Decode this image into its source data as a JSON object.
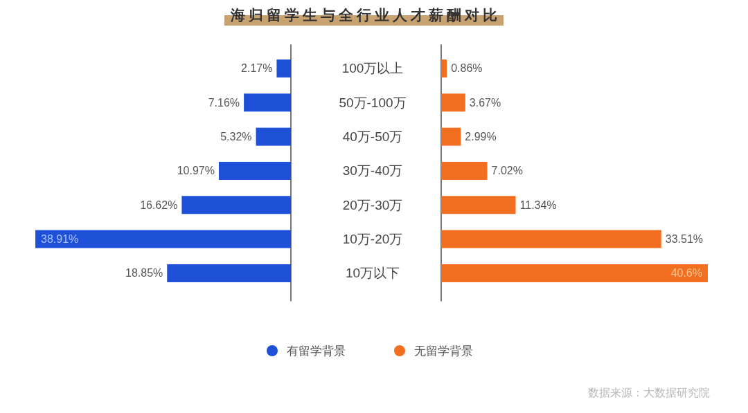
{
  "chart_data": [
    {
      "type": "bar",
      "orientation": "horizontal",
      "title": "海归留学生与全行业人才薪酬对比",
      "categories": [
        "100万以上",
        "50万-100万",
        "40万-50万",
        "30万-40万",
        "20万-30万",
        "10万-20万",
        "10万以下"
      ],
      "tick_labels": false,
      "legend": "bottom",
      "series": [
        {
          "name": "有留学背景",
          "color": "#1f50d8",
          "values": [
            2.17,
            7.16,
            5.32,
            10.97,
            16.62,
            38.91,
            18.85
          ],
          "value_labels": [
            "2.17%",
            "7.16%",
            "5.32%",
            "10.97%",
            "16.62%",
            "38.91%",
            "18.85%"
          ]
        }
      ]
    },
    {
      "type": "bar",
      "orientation": "horizontal",
      "categories": [
        "100万以上",
        "50万-100万",
        "40万-50万",
        "30万-40万",
        "20万-30万",
        "10万-20万",
        "10万以下"
      ],
      "legend": "bottom",
      "series": [
        {
          "name": "无留学背景",
          "color": "#f26f22",
          "values": [
            0.86,
            3.67,
            2.99,
            7.02,
            11.34,
            33.51,
            40.6
          ],
          "value_labels": [
            "0.86%",
            "3.67%",
            "2.99%",
            "7.02%",
            "11.34%",
            "33.51%",
            "40.6%"
          ]
        }
      ],
      "annotations": [
        "数据来源：大数据研究院"
      ]
    }
  ]
}
